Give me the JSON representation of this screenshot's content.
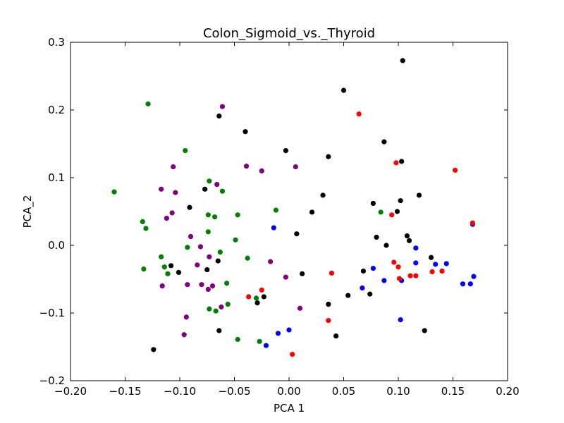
{
  "chart_data": {
    "type": "scatter",
    "title": "Colon_Sigmoid_vs._Thyroid",
    "xlabel": "PCA 1",
    "ylabel": "PCA_2",
    "xlim": [
      -0.2,
      0.2
    ],
    "ylim": [
      -0.2,
      0.3
    ],
    "xticks": [
      -0.2,
      -0.15,
      -0.1,
      -0.05,
      0.0,
      0.05,
      0.1,
      0.15,
      0.2
    ],
    "xtick_labels": [
      "−0.20",
      "−0.15",
      "−0.10",
      "−0.05",
      "0.00",
      "0.05",
      "0.10",
      "0.15",
      "0.20"
    ],
    "yticks": [
      -0.2,
      -0.1,
      0.0,
      0.1,
      0.2,
      0.3
    ],
    "ytick_labels": [
      "−0.2",
      "−0.1",
      "0.0",
      "0.1",
      "0.2",
      "0.3"
    ],
    "grid": false,
    "series": [
      {
        "color": "#000000",
        "points": [
          [
            0.104,
            0.273
          ],
          [
            0.05,
            0.229
          ],
          [
            -0.064,
            0.191
          ],
          [
            -0.04,
            0.168
          ],
          [
            0.087,
            0.153
          ],
          [
            -0.003,
            0.14
          ],
          [
            0.036,
            0.131
          ],
          [
            0.103,
            0.124
          ],
          [
            -0.077,
            0.083
          ],
          [
            0.031,
            0.074
          ],
          [
            0.119,
            0.074
          ],
          [
            0.102,
            0.066
          ],
          [
            0.077,
            0.062
          ],
          [
            -0.091,
            0.056
          ],
          [
            0.099,
            0.05
          ],
          [
            0.021,
            0.049
          ],
          [
            0.007,
            0.017
          ],
          [
            0.108,
            0.014
          ],
          [
            0.08,
            0.012
          ],
          [
            0.11,
            0.007
          ],
          [
            0.089,
            0.0
          ],
          [
            0.13,
            -0.018
          ],
          [
            -0.065,
            -0.023
          ],
          [
            -0.108,
            -0.03
          ],
          [
            -0.101,
            -0.04
          ],
          [
            -0.075,
            -0.036
          ],
          [
            0.068,
            -0.038
          ],
          [
            0.012,
            -0.042
          ],
          [
            0.054,
            -0.074
          ],
          [
            0.074,
            -0.072
          ],
          [
            -0.023,
            -0.076
          ],
          [
            -0.029,
            -0.085
          ],
          [
            0.036,
            -0.087
          ],
          [
            -0.064,
            -0.126
          ],
          [
            0.124,
            -0.126
          ],
          [
            0.043,
            -0.134
          ],
          [
            -0.124,
            -0.154
          ]
        ]
      },
      {
        "color": "#008000",
        "points": [
          [
            -0.129,
            0.209
          ],
          [
            -0.095,
            0.14
          ],
          [
            -0.16,
            0.079
          ],
          [
            -0.073,
            0.095
          ],
          [
            -0.061,
            0.08
          ],
          [
            0.084,
            0.049
          ],
          [
            -0.012,
            0.052
          ],
          [
            -0.047,
            0.045
          ],
          [
            -0.074,
            0.045
          ],
          [
            -0.068,
            0.042
          ],
          [
            -0.134,
            0.035
          ],
          [
            -0.131,
            0.025
          ],
          [
            -0.074,
            0.02
          ],
          [
            -0.049,
            0.008
          ],
          [
            -0.093,
            -0.003
          ],
          [
            -0.063,
            -0.01
          ],
          [
            -0.038,
            -0.019
          ],
          [
            -0.117,
            -0.017
          ],
          [
            -0.114,
            -0.032
          ],
          [
            -0.133,
            -0.035
          ],
          [
            -0.111,
            -0.042
          ],
          [
            -0.057,
            -0.056
          ],
          [
            -0.03,
            -0.078
          ],
          [
            -0.056,
            -0.087
          ],
          [
            -0.073,
            -0.094
          ],
          [
            -0.067,
            -0.097
          ],
          [
            -0.047,
            -0.139
          ],
          [
            -0.027,
            -0.142
          ]
        ]
      },
      {
        "color": "#800080",
        "points": [
          [
            -0.061,
            0.205
          ],
          [
            -0.039,
            0.117
          ],
          [
            -0.106,
            0.116
          ],
          [
            -0.025,
            0.11
          ],
          [
            0.006,
            0.116
          ],
          [
            -0.066,
            0.09
          ],
          [
            -0.117,
            0.083
          ],
          [
            -0.104,
            0.078
          ],
          [
            -0.107,
            0.048
          ],
          [
            -0.112,
            0.04
          ],
          [
            -0.09,
            0.013
          ],
          [
            -0.081,
            -0.002
          ],
          [
            -0.017,
            -0.024
          ],
          [
            -0.073,
            -0.017
          ],
          [
            -0.084,
            -0.029
          ],
          [
            -0.003,
            -0.047
          ],
          [
            -0.116,
            -0.06
          ],
          [
            -0.093,
            -0.058
          ],
          [
            -0.08,
            -0.058
          ],
          [
            -0.07,
            -0.06
          ],
          [
            -0.074,
            -0.065
          ],
          [
            -0.062,
            -0.091
          ],
          [
            0.01,
            -0.093
          ],
          [
            -0.094,
            -0.106
          ],
          [
            -0.096,
            -0.132
          ]
        ]
      },
      {
        "color": "#0000ff",
        "points": [
          [
            -0.014,
            0.026
          ],
          [
            0.168,
            0.031
          ],
          [
            0.116,
            -0.004
          ],
          [
            0.116,
            -0.026
          ],
          [
            0.134,
            -0.028
          ],
          [
            0.144,
            -0.027
          ],
          [
            0.077,
            -0.034
          ],
          [
            0.169,
            -0.046
          ],
          [
            0.087,
            -0.052
          ],
          [
            0.103,
            -0.052
          ],
          [
            0.159,
            -0.057
          ],
          [
            0.166,
            -0.057
          ],
          [
            0.067,
            -0.063
          ],
          [
            0.102,
            -0.11
          ],
          [
            0.0,
            -0.125
          ],
          [
            -0.01,
            -0.13
          ],
          [
            -0.021,
            -0.148
          ]
        ]
      },
      {
        "color": "#ff0000",
        "points": [
          [
            0.064,
            0.194
          ],
          [
            0.098,
            0.122
          ],
          [
            0.152,
            0.111
          ],
          [
            0.168,
            0.033
          ],
          [
            0.094,
            0.045
          ],
          [
            0.096,
            -0.025
          ],
          [
            0.1,
            -0.032
          ],
          [
            0.131,
            -0.039
          ],
          [
            0.14,
            -0.038
          ],
          [
            0.039,
            -0.041
          ],
          [
            0.111,
            -0.045
          ],
          [
            0.116,
            -0.045
          ],
          [
            0.101,
            -0.049
          ],
          [
            -0.037,
            -0.076
          ],
          [
            -0.025,
            -0.066
          ],
          [
            0.036,
            -0.111
          ],
          [
            0.003,
            -0.161
          ]
        ]
      }
    ]
  }
}
